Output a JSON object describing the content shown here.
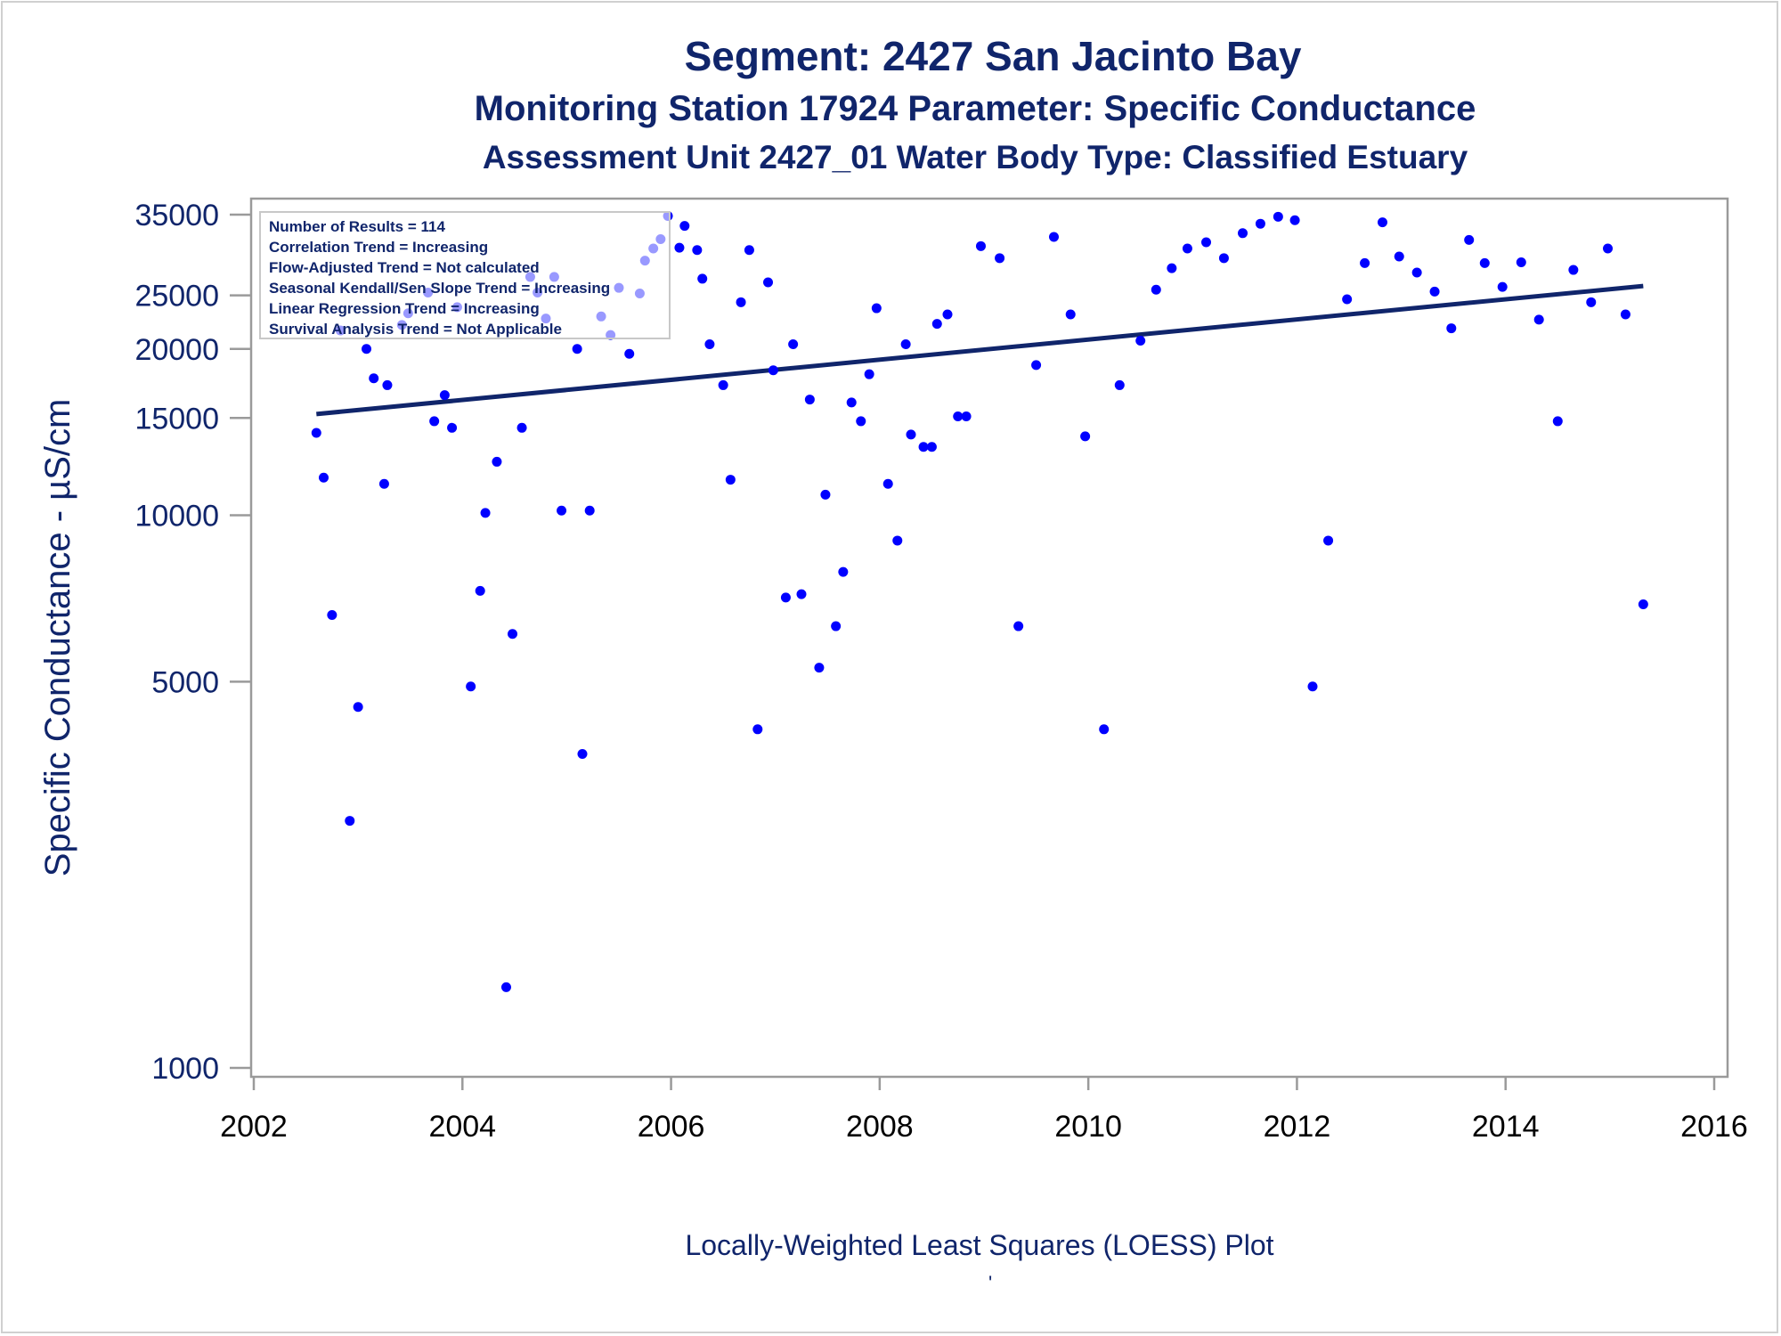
{
  "titles": {
    "line1": "Segment: 2427  San Jacinto Bay",
    "line2": "Monitoring Station 17924 Parameter: Specific Conductance",
    "line3": "Assessment Unit 2427_01   Water Body Type: Classified Estuary"
  },
  "footnote": "Locally-Weighted Least Squares (LOESS) Plot",
  "footnote_mark": "'",
  "legend_box": {
    "lines": [
      "Number of Results = 114",
      "Correlation Trend = Increasing",
      "Flow-Adjusted Trend = Not calculated",
      "Seasonal Kendall/Sen Slope Trend = Increasing",
      "Linear Regression Trend = Increasing",
      "Survival Analysis Trend = Not Applicable"
    ]
  },
  "colors": {
    "text": "#10256b",
    "points": "#0000ff",
    "trend_line": "#10256b",
    "axis": "#9a9a9a"
  },
  "chart_data": {
    "type": "scatter",
    "ylabel": "Specific Conductance -  µS/cm",
    "xlabel": "",
    "y_scale": "log",
    "xlim": [
      2002,
      2016
    ],
    "ylim": [
      1000,
      35000
    ],
    "x_ticks": [
      2002,
      2004,
      2006,
      2008,
      2010,
      2012,
      2014,
      2016
    ],
    "y_ticks": [
      1000,
      5000,
      10000,
      15000,
      20000,
      25000,
      35000
    ],
    "grid": false,
    "series": [
      {
        "type": "scatter",
        "points": [
          [
            2002.6,
            14100
          ],
          [
            2002.67,
            11700
          ],
          [
            2002.75,
            6600
          ],
          [
            2002.83,
            21600
          ],
          [
            2002.92,
            2800
          ],
          [
            2003.0,
            4500
          ],
          [
            2003.08,
            20000
          ],
          [
            2003.15,
            17700
          ],
          [
            2003.25,
            11400
          ],
          [
            2003.28,
            17200
          ],
          [
            2003.42,
            22100
          ],
          [
            2003.48,
            23200
          ],
          [
            2003.67,
            25300
          ],
          [
            2003.73,
            14800
          ],
          [
            2003.83,
            16500
          ],
          [
            2003.9,
            14400
          ],
          [
            2003.95,
            23800
          ],
          [
            2004.08,
            4900
          ],
          [
            2004.17,
            7300
          ],
          [
            2004.22,
            10100
          ],
          [
            2004.33,
            12500
          ],
          [
            2004.42,
            1400
          ],
          [
            2004.48,
            6100
          ],
          [
            2004.57,
            14400
          ],
          [
            2004.65,
            27000
          ],
          [
            2004.72,
            25300
          ],
          [
            2004.8,
            22700
          ],
          [
            2004.88,
            27000
          ],
          [
            2004.95,
            10200
          ],
          [
            2005.1,
            20000
          ],
          [
            2005.15,
            3700
          ],
          [
            2005.22,
            10200
          ],
          [
            2005.33,
            22900
          ],
          [
            2005.42,
            21200
          ],
          [
            2005.5,
            25800
          ],
          [
            2005.6,
            19600
          ],
          [
            2005.7,
            25200
          ],
          [
            2005.75,
            28900
          ],
          [
            2005.83,
            30400
          ],
          [
            2005.9,
            31600
          ],
          [
            2005.97,
            34800
          ],
          [
            2006.08,
            30500
          ],
          [
            2006.13,
            33400
          ],
          [
            2006.25,
            30200
          ],
          [
            2006.3,
            26800
          ],
          [
            2006.37,
            20400
          ],
          [
            2006.5,
            17200
          ],
          [
            2006.57,
            11600
          ],
          [
            2006.67,
            24300
          ],
          [
            2006.75,
            30200
          ],
          [
            2006.83,
            4100
          ],
          [
            2006.93,
            26400
          ],
          [
            2006.98,
            18300
          ],
          [
            2007.1,
            7100
          ],
          [
            2007.17,
            20400
          ],
          [
            2007.25,
            7200
          ],
          [
            2007.33,
            16200
          ],
          [
            2007.42,
            5300
          ],
          [
            2007.48,
            10900
          ],
          [
            2007.58,
            6300
          ],
          [
            2007.65,
            7900
          ],
          [
            2007.73,
            16000
          ],
          [
            2007.82,
            14800
          ],
          [
            2007.9,
            18000
          ],
          [
            2007.97,
            23700
          ],
          [
            2008.08,
            11400
          ],
          [
            2008.17,
            9000
          ],
          [
            2008.25,
            20400
          ],
          [
            2008.3,
            14000
          ],
          [
            2008.42,
            13300
          ],
          [
            2008.5,
            13300
          ],
          [
            2008.55,
            22200
          ],
          [
            2008.65,
            23100
          ],
          [
            2008.75,
            15100
          ],
          [
            2008.83,
            15100
          ],
          [
            2008.97,
            30700
          ],
          [
            2009.15,
            29200
          ],
          [
            2009.33,
            6300
          ],
          [
            2009.5,
            18700
          ],
          [
            2009.67,
            31900
          ],
          [
            2009.83,
            23100
          ],
          [
            2009.97,
            13900
          ],
          [
            2010.15,
            4100
          ],
          [
            2010.3,
            17200
          ],
          [
            2010.5,
            20700
          ],
          [
            2010.65,
            25600
          ],
          [
            2010.8,
            28000
          ],
          [
            2010.95,
            30400
          ],
          [
            2011.13,
            31200
          ],
          [
            2011.3,
            29200
          ],
          [
            2011.48,
            32400
          ],
          [
            2011.65,
            33700
          ],
          [
            2011.82,
            34700
          ],
          [
            2011.98,
            34200
          ],
          [
            2012.15,
            4900
          ],
          [
            2012.3,
            9000
          ],
          [
            2012.48,
            24600
          ],
          [
            2012.65,
            28600
          ],
          [
            2012.82,
            33900
          ],
          [
            2012.98,
            29400
          ],
          [
            2013.15,
            27500
          ],
          [
            2013.32,
            25400
          ],
          [
            2013.48,
            21800
          ],
          [
            2013.65,
            31500
          ],
          [
            2013.8,
            28600
          ],
          [
            2013.97,
            25900
          ],
          [
            2014.15,
            28700
          ],
          [
            2014.32,
            22600
          ],
          [
            2014.5,
            14800
          ],
          [
            2014.65,
            27800
          ],
          [
            2014.82,
            24300
          ],
          [
            2014.98,
            30400
          ],
          [
            2015.15,
            23100
          ],
          [
            2015.32,
            6900
          ]
        ]
      },
      {
        "type": "line",
        "points": [
          [
            2002.6,
            15250
          ],
          [
            2015.32,
            26000
          ]
        ]
      }
    ]
  }
}
